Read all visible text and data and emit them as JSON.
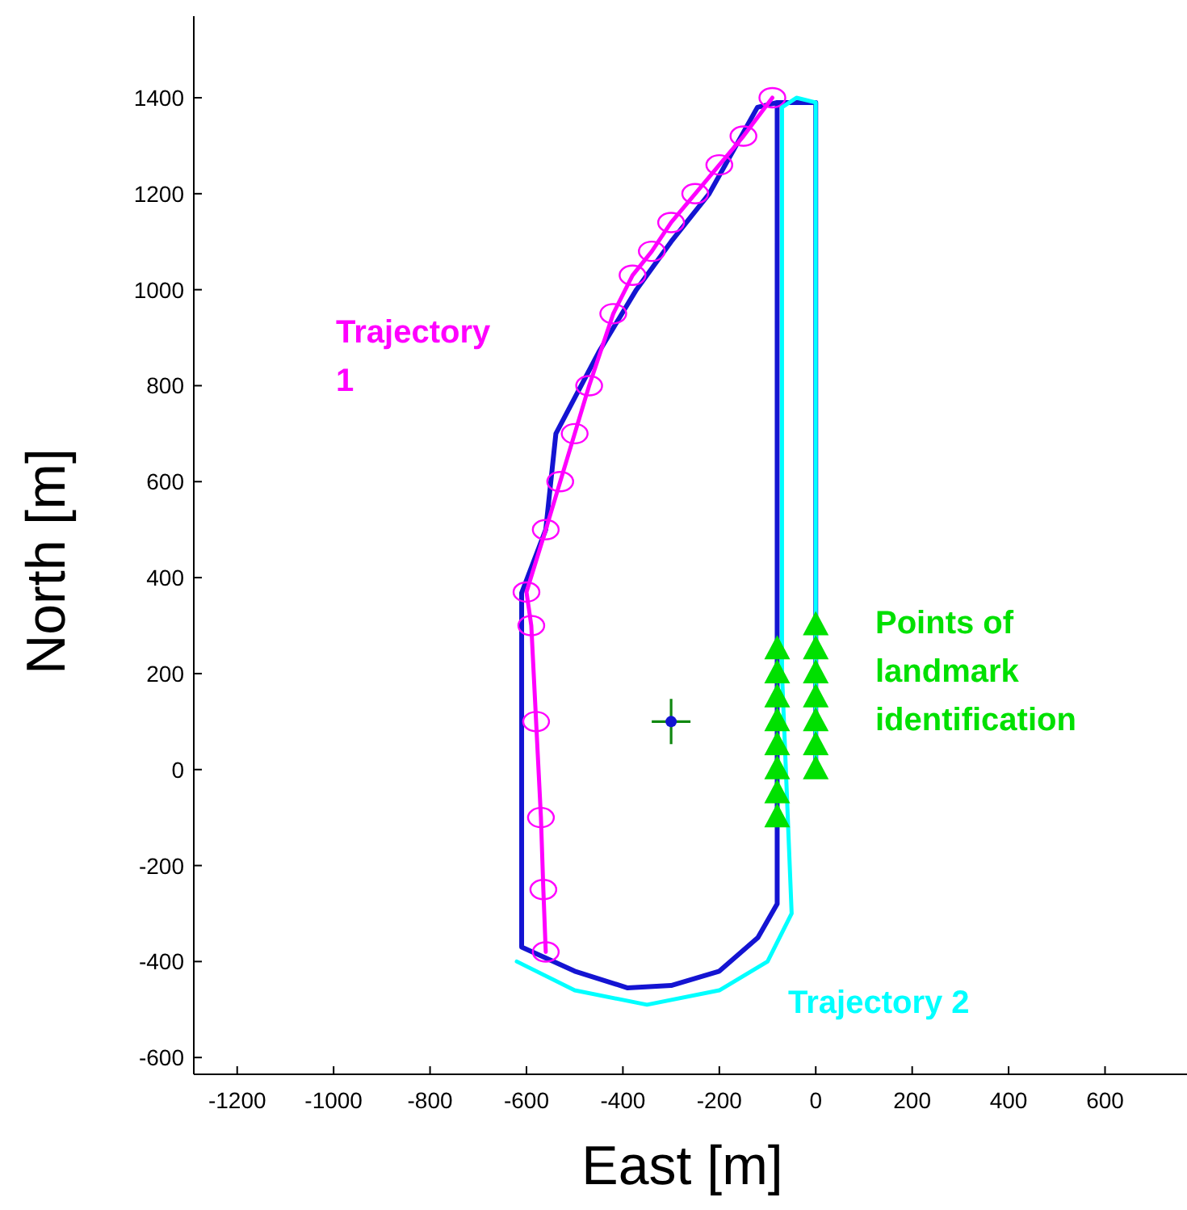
{
  "chart_data": {
    "type": "line",
    "xlabel": "East [m]",
    "ylabel": "North [m]",
    "xlim": [
      -1290,
      770
    ],
    "ylim": [
      -635,
      1570
    ],
    "xticks": [
      -1200,
      -1000,
      -800,
      -600,
      -400,
      -200,
      0,
      200,
      400,
      600
    ],
    "yticks": [
      -600,
      -400,
      -200,
      0,
      200,
      400,
      600,
      800,
      1000,
      1200,
      1400
    ],
    "grid": false,
    "series": [
      {
        "color": "#1414d2",
        "marker": "none",
        "x": [
          0,
          0,
          -80,
          -80,
          -120,
          -200,
          -300,
          -390,
          -500,
          -610,
          -610,
          -560,
          -539,
          -450,
          -372,
          -300,
          -221,
          -121,
          -80
        ],
        "values": [
          0,
          1390,
          1390,
          -280,
          -350,
          -420,
          -450,
          -455,
          -420,
          -370,
          368,
          500,
          700,
          870,
          1000,
          1100,
          1200,
          1380,
          1390
        ]
      },
      {
        "name": "Trajectory 1",
        "color": "#ff00ff",
        "marker": "circle",
        "x": [
          -560,
          -565,
          -570,
          -580,
          -590,
          -600,
          -560,
          -530,
          -500,
          -470,
          -420,
          -380,
          -340,
          -300,
          -250,
          -200,
          -150,
          -90
        ],
        "values": [
          -380,
          -250,
          -100,
          100,
          300,
          370,
          500,
          600,
          700,
          800,
          950,
          1030,
          1080,
          1140,
          1200,
          1260,
          1320,
          1400
        ]
      },
      {
        "name": "Trajectory 2",
        "color": "#00ffff",
        "marker": "none",
        "x": [
          0,
          0,
          -40,
          -70,
          -70,
          -50,
          -100,
          -200,
          -350,
          -500,
          -620
        ],
        "values": [
          0,
          1390,
          1400,
          1380,
          200,
          -300,
          -400,
          -460,
          -490,
          -460,
          -400
        ]
      },
      {
        "type": "scatter",
        "name": "Points of landmark identification",
        "color": "#00e000",
        "marker": "triangle",
        "x": [
          -80,
          -80,
          -80,
          -80,
          -80,
          -80,
          -80,
          -80,
          0,
          0,
          0,
          0,
          0,
          0,
          0
        ],
        "values": [
          -100,
          -50,
          0,
          50,
          100,
          150,
          200,
          250,
          0,
          50,
          100,
          150,
          200,
          250,
          300
        ]
      },
      {
        "type": "scatter",
        "color": "#118811",
        "marker": "cross",
        "x": [
          -300
        ],
        "values": [
          100
        ]
      },
      {
        "type": "scatter",
        "color": "#1414d2",
        "marker": "circle",
        "x": [
          -300
        ],
        "values": [
          100
        ]
      }
    ]
  }
}
